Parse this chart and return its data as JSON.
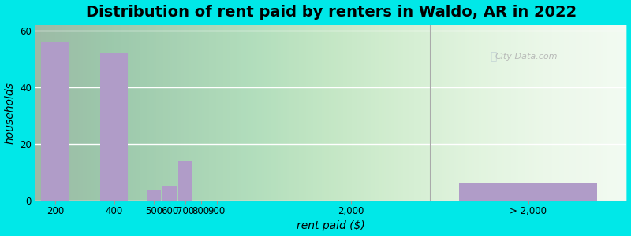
{
  "title": "Distribution of rent paid by renters in Waldo, AR in 2022",
  "xlabel": "rent paid ($)",
  "ylabel": "households",
  "categories": [
    "200",
    "400",
    "500",
    "600",
    "700",
    "800",
    "900",
    "2,000",
    "> 2,000"
  ],
  "values": [
    56,
    52,
    4,
    5,
    14,
    0,
    0,
    0,
    6
  ],
  "bar_color": "#b09cc8",
  "background_outer": "#00e8e8",
  "ylim": [
    0,
    62
  ],
  "yticks": [
    0,
    20,
    40,
    60
  ],
  "title_fontsize": 14,
  "axis_label_fontsize": 10,
  "tick_fontsize": 8.5,
  "custom_x": [
    0,
    1.5,
    2.5,
    2.9,
    3.3,
    3.7,
    4.1,
    7.5,
    12.0
  ],
  "bar_widths": [
    0.7,
    0.7,
    0.35,
    0.35,
    0.35,
    0.35,
    0.35,
    0.7,
    3.5
  ],
  "separator_x": 9.5,
  "xlim": [
    -0.5,
    14.5
  ]
}
